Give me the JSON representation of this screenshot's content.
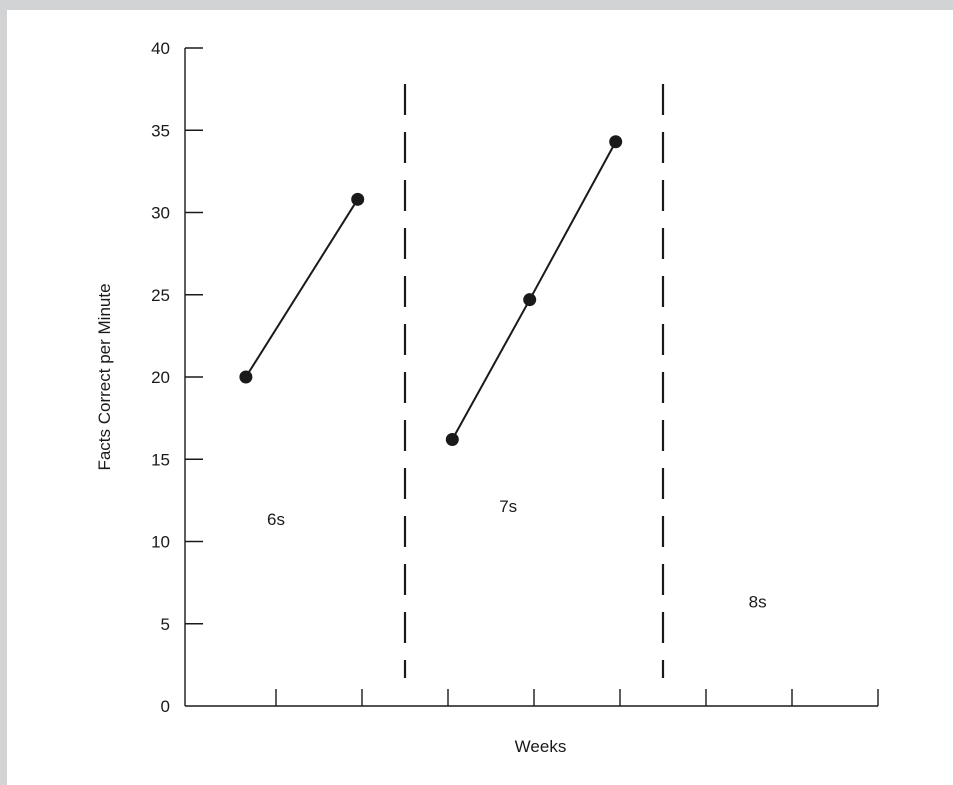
{
  "chart_data": {
    "type": "line",
    "title": "",
    "xlabel": "Weeks",
    "ylabel": "Facts Correct per Minute",
    "ylim": [
      0,
      40
    ],
    "yticks": [
      0,
      5,
      10,
      15,
      20,
      25,
      30,
      35,
      40
    ],
    "xlim": [
      0,
      8
    ],
    "grid": false,
    "phase_change_lines": [
      2.5,
      5.5
    ],
    "phases": [
      {
        "label": "6s",
        "x": 1.0,
        "y": 11
      },
      {
        "label": "7s",
        "x": 3.7,
        "y": 11.8
      },
      {
        "label": "8s",
        "x": 6.6,
        "y": 6
      }
    ],
    "series": [
      {
        "x": [
          0.65,
          1.95
        ],
        "values": [
          20,
          30.8
        ]
      },
      {
        "x": [
          3.05,
          3.95,
          4.95
        ],
        "values": [
          16.2,
          24.7,
          34.3
        ]
      }
    ]
  },
  "colors": {
    "ink": "#1a1a1a",
    "frame": "#d1d3d4"
  }
}
